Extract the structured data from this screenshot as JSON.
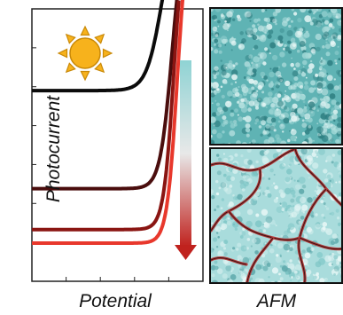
{
  "figure": {
    "ylabel": "Photocurrent",
    "xlabel": "Potential",
    "afm_label": "AFM"
  },
  "icons": {
    "illumination": "sun-icon",
    "trend": "gradient-down-arrow-icon"
  },
  "colors": {
    "curve_1": "#0b0b0b",
    "curve_2": "#4a0d0d",
    "curve_3": "#8a1512",
    "curve_4": "#e8382c",
    "sun_fill": "#f7b21c",
    "sun_stroke": "#c98908",
    "arrow_top": "#8fd3d4",
    "arrow_bottom": "#c0221e",
    "afm_base": "#6fbdbd",
    "afm_crack": "#b23a3a"
  },
  "chart_data": {
    "type": "line",
    "title": "",
    "xlabel": "Potential",
    "ylabel": "Photocurrent",
    "xlim": [
      0,
      1
    ],
    "ylim": [
      0,
      1
    ],
    "grid": false,
    "legend": "none",
    "series": [
      {
        "onset": 0.76,
        "baseline": 0.7,
        "width": 0.045
      },
      {
        "onset": 0.82,
        "baseline": 0.34,
        "width": 0.035
      },
      {
        "onset": 0.83,
        "baseline": 0.19,
        "width": 0.03
      },
      {
        "onset": 0.85,
        "baseline": 0.14,
        "width": 0.03
      }
    ]
  }
}
